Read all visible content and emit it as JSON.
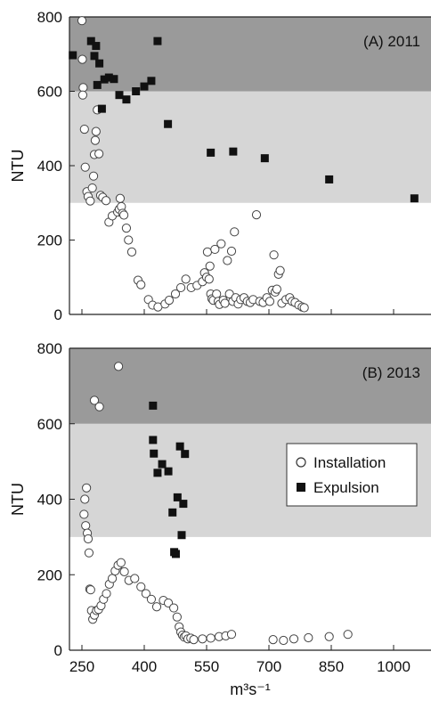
{
  "chart_data": [
    {
      "type": "scatter",
      "panel_label": "(A) 2011",
      "ylabel": "NTU",
      "xlabel": "",
      "xlim": [
        220,
        1090
      ],
      "ylim": [
        0,
        800
      ],
      "yticks": [
        "0",
        "200",
        "400",
        "600",
        "800"
      ],
      "xticks": [],
      "bands": [
        {
          "from": 300,
          "to": 600,
          "color": "#d6d6d6"
        },
        {
          "from": 600,
          "to": 800,
          "color": "#9a9a9a"
        }
      ],
      "grid": false,
      "series": [
        {
          "name": "Installation",
          "marker": "open-circle",
          "points": [
            [
              250,
              790
            ],
            [
              251,
              686
            ],
            [
              253,
              610
            ],
            [
              252,
              590
            ],
            [
              256,
              498
            ],
            [
              258,
              396
            ],
            [
              262,
              330
            ],
            [
              265,
              317
            ],
            [
              270,
              305
            ],
            [
              275,
              340
            ],
            [
              278,
              372
            ],
            [
              280,
              430
            ],
            [
              282,
              468
            ],
            [
              284,
              492
            ],
            [
              287,
              550
            ],
            [
              291,
              432
            ],
            [
              295,
              320
            ],
            [
              300,
              315
            ],
            [
              308,
              306
            ],
            [
              315,
              248
            ],
            [
              323,
              265
            ],
            [
              336,
              275
            ],
            [
              340,
              283
            ],
            [
              342,
              312
            ],
            [
              345,
              290
            ],
            [
              348,
              272
            ],
            [
              351,
              267
            ],
            [
              357,
              232
            ],
            [
              362,
              200
            ],
            [
              370,
              168
            ],
            [
              385,
              92
            ],
            [
              392,
              80
            ],
            [
              410,
              40
            ],
            [
              420,
              25
            ],
            [
              433,
              20
            ],
            [
              450,
              28
            ],
            [
              460,
              38
            ],
            [
              475,
              55
            ],
            [
              488,
              72
            ],
            [
              500,
              95
            ],
            [
              513,
              72
            ],
            [
              527,
              78
            ],
            [
              540,
              88
            ],
            [
              545,
              112
            ],
            [
              550,
              100
            ],
            [
              552,
              168
            ],
            [
              556,
              95
            ],
            [
              558,
              130
            ],
            [
              560,
              55
            ],
            [
              563,
              42
            ],
            [
              566,
              38
            ],
            [
              570,
              175
            ],
            [
              574,
              55
            ],
            [
              578,
              35
            ],
            [
              581,
              27
            ],
            [
              585,
              190
            ],
            [
              590,
              38
            ],
            [
              594,
              30
            ],
            [
              600,
              145
            ],
            [
              605,
              55
            ],
            [
              610,
              170
            ],
            [
              613,
              35
            ],
            [
              617,
              222
            ],
            [
              620,
              45
            ],
            [
              626,
              28
            ],
            [
              632,
              40
            ],
            [
              640,
              45
            ],
            [
              648,
              35
            ],
            [
              655,
              32
            ],
            [
              662,
              40
            ],
            [
              670,
              268
            ],
            [
              678,
              35
            ],
            [
              686,
              32
            ],
            [
              695,
              45
            ],
            [
              702,
              35
            ],
            [
              708,
              65
            ],
            [
              712,
              160
            ],
            [
              715,
              60
            ],
            [
              719,
              68
            ],
            [
              723,
              108
            ],
            [
              727,
              118
            ],
            [
              731,
              30
            ],
            [
              741,
              40
            ],
            [
              750,
              45
            ],
            [
              756,
              35
            ],
            [
              763,
              32
            ],
            [
              772,
              25
            ],
            [
              780,
              20
            ],
            [
              785,
              18
            ]
          ]
        },
        {
          "name": "Expulsion",
          "marker": "filled-square",
          "points": [
            [
              228,
              697
            ],
            [
              272,
              735
            ],
            [
              280,
              695
            ],
            [
              284,
              722
            ],
            [
              287,
              617
            ],
            [
              292,
              675
            ],
            [
              298,
              553
            ],
            [
              304,
              632
            ],
            [
              315,
              637
            ],
            [
              327,
              633
            ],
            [
              340,
              590
            ],
            [
              357,
              578
            ],
            [
              380,
              600
            ],
            [
              400,
              613
            ],
            [
              417,
              628
            ],
            [
              432,
              735
            ],
            [
              457,
              512
            ],
            [
              560,
              435
            ],
            [
              614,
              438
            ],
            [
              690,
              420
            ],
            [
              845,
              363
            ],
            [
              1050,
              312
            ]
          ]
        }
      ]
    },
    {
      "type": "scatter",
      "panel_label": "(B) 2013",
      "ylabel": "NTU",
      "xlabel": "m³s⁻¹",
      "xlim": [
        220,
        1090
      ],
      "ylim": [
        0,
        800
      ],
      "yticks": [
        "0",
        "200",
        "400",
        "600",
        "800"
      ],
      "xticks": [
        "250",
        "400",
        "550",
        "700",
        "850",
        "1000"
      ],
      "bands": [
        {
          "from": 300,
          "to": 600,
          "color": "#d6d6d6"
        },
        {
          "from": 600,
          "to": 800,
          "color": "#9a9a9a"
        }
      ],
      "grid": false,
      "legend": {
        "position": "right",
        "entries": [
          {
            "label": "Installation",
            "marker": "open-circle"
          },
          {
            "label": "Expulsion",
            "marker": "filled-square"
          }
        ]
      },
      "series": [
        {
          "name": "Installation",
          "marker": "open-circle",
          "points": [
            [
              255,
              360
            ],
            [
              257,
              400
            ],
            [
              259,
              330
            ],
            [
              261,
              430
            ],
            [
              263,
              310
            ],
            [
              265,
              295
            ],
            [
              267,
              258
            ],
            [
              269,
              162
            ],
            [
              271,
              160
            ],
            [
              273,
              105
            ],
            [
              276,
              82
            ],
            [
              280,
              93
            ],
            [
              285,
              105
            ],
            [
              290,
              108
            ],
            [
              296,
              118
            ],
            [
              302,
              135
            ],
            [
              309,
              150
            ],
            [
              316,
              175
            ],
            [
              323,
              190
            ],
            [
              330,
              210
            ],
            [
              337,
              225
            ],
            [
              344,
              232
            ],
            [
              352,
              208
            ],
            [
              363,
              185
            ],
            [
              377,
              190
            ],
            [
              392,
              168
            ],
            [
              404,
              150
            ],
            [
              417,
              135
            ],
            [
              430,
              115
            ],
            [
              446,
              132
            ],
            [
              458,
              125
            ],
            [
              471,
              112
            ],
            [
              479,
              88
            ],
            [
              484,
              62
            ],
            [
              488,
              48
            ],
            [
              492,
              40
            ],
            [
              496,
              35
            ],
            [
              500,
              38
            ],
            [
              505,
              30
            ],
            [
              512,
              32
            ],
            [
              519,
              28
            ],
            [
              540,
              30
            ],
            [
              560,
              32
            ],
            [
              580,
              36
            ],
            [
              596,
              38
            ],
            [
              610,
              42
            ],
            [
              710,
              28
            ],
            [
              735,
              26
            ],
            [
              760,
              30
            ],
            [
              795,
              33
            ],
            [
              845,
              36
            ],
            [
              890,
              42
            ],
            [
              338,
              752
            ],
            [
              280,
              662
            ],
            [
              292,
              645
            ]
          ]
        },
        {
          "name": "Expulsion",
          "marker": "filled-square",
          "points": [
            [
              421,
              648
            ],
            [
              421,
              557
            ],
            [
              423,
              521
            ],
            [
              432,
              470
            ],
            [
              443,
              493
            ],
            [
              458,
              474
            ],
            [
              468,
              365
            ],
            [
              472,
              260
            ],
            [
              476,
              255
            ],
            [
              480,
              405
            ],
            [
              486,
              540
            ],
            [
              490,
              305
            ],
            [
              494,
              388
            ],
            [
              498,
              520
            ]
          ]
        }
      ]
    }
  ]
}
